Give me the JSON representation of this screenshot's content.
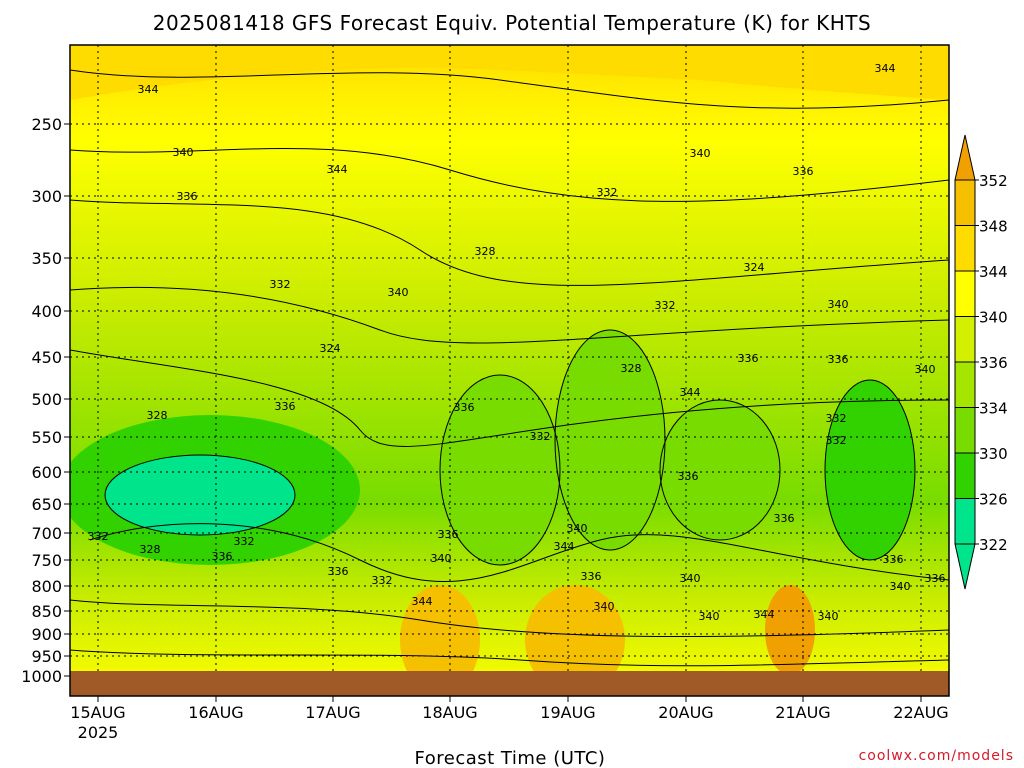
{
  "chart_data": {
    "type": "heatmap",
    "title": "2025081418 GFS Forecast Equiv. Potential Temperature (K) for KHTS",
    "xlabel": "Forecast Time (UTC)",
    "ylabel": "",
    "credit": "coolwx.com/models",
    "x_ticks": [
      "15AUG",
      "16AUG",
      "17AUG",
      "18AUG",
      "19AUG",
      "20AUG",
      "21AUG",
      "22AUG"
    ],
    "x_year_label": "2025",
    "y_ticks": [
      "250",
      "300",
      "350",
      "400",
      "450",
      "500",
      "550",
      "600",
      "650",
      "700",
      "750",
      "800",
      "850",
      "900",
      "950",
      "1000"
    ],
    "colorbar_labels": [
      "352",
      "348",
      "344",
      "340",
      "336",
      "334",
      "330",
      "326",
      "322"
    ],
    "colorbar_colors": [
      "#f0a000",
      "#f5c000",
      "#ffdc00",
      "#ffff00",
      "#d2f000",
      "#a5e600",
      "#78dc00",
      "#32d200",
      "#00e58c"
    ],
    "contour_labels": [
      "344",
      "340",
      "336",
      "332",
      "328",
      "324",
      "344",
      "340",
      "336",
      "332",
      "328",
      "324",
      "340",
      "336",
      "332",
      "340",
      "336",
      "332",
      "328",
      "340",
      "344",
      "336",
      "336",
      "340",
      "344",
      "336",
      "332",
      "332",
      "336",
      "336",
      "340",
      "344",
      "336",
      "332",
      "336",
      "340",
      "340",
      "344",
      "344",
      "340",
      "336",
      "336",
      "332",
      "328",
      "332",
      "336",
      "340",
      "340"
    ],
    "surface_color": "#a05a28",
    "grid": true
  }
}
